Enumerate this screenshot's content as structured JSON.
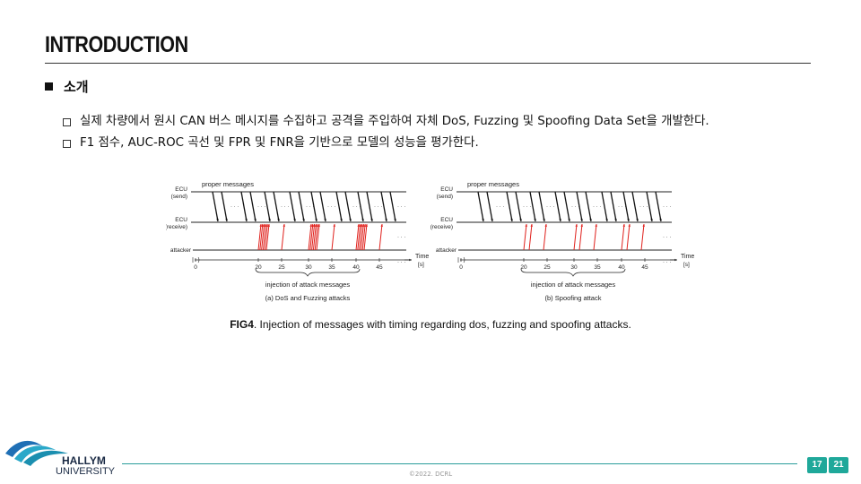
{
  "slide": {
    "title": "INTRODUCTION",
    "section": "소개",
    "bullets": [
      "실제 차량에서 원시 CAN 버스 메시지를 수집하고 공격을 주입하여 자체 DoS, Fuzzing 및 Spoofing Data Set을 개발한다.",
      "F1 점수, AUC-ROC 곡선 및 FPR 및 FNR을 기반으로 모델의 성능을 평가한다."
    ]
  },
  "figure": {
    "labels": {
      "proper": "proper messages",
      "ecu_send_1": "ECU",
      "ecu_send_2": "(send)",
      "ecu_recv_1": "ECU",
      "ecu_recv_2": "(receive)",
      "attacker": "attacker",
      "time": "Time",
      "unit": "[s]",
      "injection": "injection of attack messages",
      "dots": "· · ·"
    },
    "ticks": [
      "0",
      "20",
      "25",
      "30",
      "35",
      "40",
      "45"
    ],
    "panel_a": "(a) DoS and Fuzzing attacks",
    "panel_b": "(b) Spoofing attack",
    "caption_bold": "FIG4",
    "caption_text": ". Injection of messages with timing regarding  dos, fuzzing and spoofing attacks.",
    "colors": {
      "proper": "#111111",
      "attack": "#e0201c"
    }
  },
  "footer": {
    "university_1": "HALLYM",
    "university_2": "UNIVERSITY",
    "copyright": "©2022. DCRL",
    "page_current": "17",
    "page_total": "21"
  }
}
